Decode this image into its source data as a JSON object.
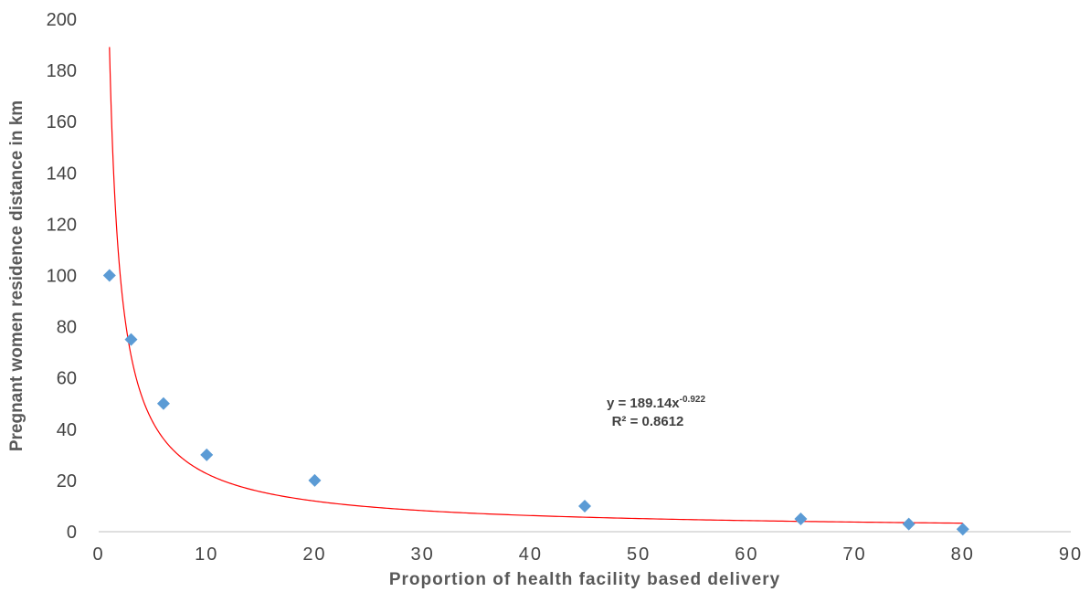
{
  "chart_data": {
    "type": "scatter",
    "xlabel": "Proportion of health facility  based delivery",
    "ylabel": "Pregnant women residence distance in km",
    "xlim": [
      0,
      90
    ],
    "ylim": [
      0,
      200
    ],
    "x_ticks": [
      "0",
      "10",
      "20",
      "30",
      "40",
      "50",
      "60",
      "70",
      "80",
      "90"
    ],
    "y_ticks": [
      "0",
      "20",
      "40",
      "60",
      "80",
      "100",
      "120",
      "140",
      "160",
      "180",
      "200"
    ],
    "grid": false,
    "series": [
      {
        "marker": "diamond",
        "color": "#5B9BD5",
        "points": [
          {
            "x": 1,
            "y": 100
          },
          {
            "x": 3,
            "y": 75
          },
          {
            "x": 6,
            "y": 50
          },
          {
            "x": 10,
            "y": 30
          },
          {
            "x": 20,
            "y": 20
          },
          {
            "x": 45,
            "y": 10
          },
          {
            "x": 65,
            "y": 5
          },
          {
            "x": 75,
            "y": 3
          },
          {
            "x": 80,
            "y": 1
          }
        ]
      }
    ],
    "trendline": {
      "type": "power",
      "coefficient": 189.14,
      "exponent": -0.922,
      "color": "#FF0000",
      "x_range": [
        1,
        80
      ],
      "equation_main": "y = 189.14x",
      "equation_exponent": "-0.922",
      "r_squared_label": "R² = 0.8612"
    }
  }
}
